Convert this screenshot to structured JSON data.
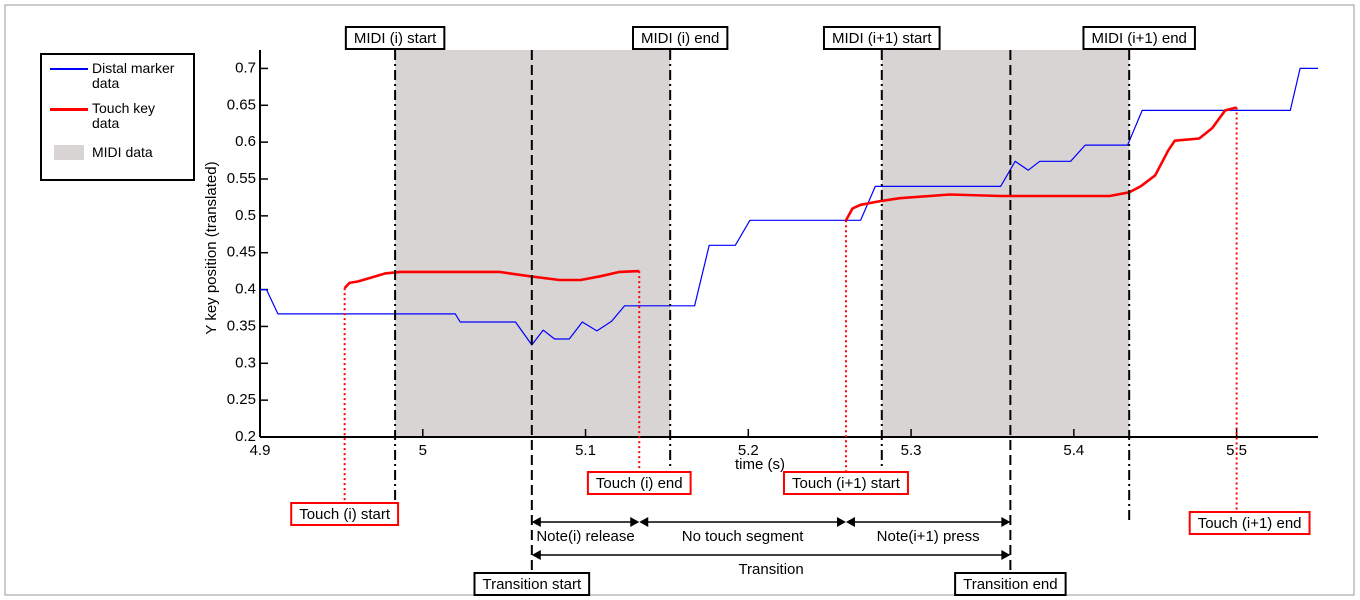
{
  "chart_data": {
    "type": "line",
    "xlabel": "time (s)",
    "ylabel": "Y key position (translated)",
    "xlim": [
      4.9,
      5.55
    ],
    "ylim": [
      0.2,
      0.725
    ],
    "xticks": [
      4.9,
      5,
      5.1,
      5.2,
      5.3,
      5.4,
      5.5
    ],
    "yticks": [
      0.2,
      0.25,
      0.3,
      0.35,
      0.4,
      0.45,
      0.5,
      0.55,
      0.6,
      0.65,
      0.7
    ],
    "series": [
      {
        "name": "Distal marker data",
        "color": "#0000ff",
        "x": [
          4.9,
          4.904,
          4.911,
          5.02,
          5.023,
          5.057,
          5.067,
          5.074,
          5.081,
          5.09,
          5.098,
          5.107,
          5.116,
          5.124,
          5.167,
          5.176,
          5.192,
          5.201,
          5.269,
          5.278,
          5.355,
          5.364,
          5.372,
          5.379,
          5.398,
          5.407,
          5.433,
          5.442,
          5.533,
          5.539,
          5.55
        ],
        "values": [
          0.4,
          0.4,
          0.367,
          0.367,
          0.356,
          0.356,
          0.325,
          0.345,
          0.333,
          0.333,
          0.356,
          0.344,
          0.357,
          0.378,
          0.378,
          0.46,
          0.46,
          0.494,
          0.494,
          0.54,
          0.54,
          0.574,
          0.562,
          0.574,
          0.574,
          0.596,
          0.596,
          0.643,
          0.643,
          0.7,
          0.7
        ]
      },
      {
        "name": "Touch key data",
        "color": "#ff0000",
        "x": [
          4.952,
          4.955,
          4.96,
          4.968,
          4.977,
          4.986,
          5.017,
          5.047,
          5.066,
          5.084,
          5.097,
          5.109,
          5.121,
          5.133,
          null,
          5.26,
          5.264,
          5.269,
          5.281,
          5.293,
          5.324,
          5.355,
          5.385,
          5.422,
          5.434,
          5.441,
          5.45,
          5.458,
          5.462,
          5.477,
          5.485,
          5.493,
          5.5
        ],
        "values": [
          0.402,
          0.409,
          0.411,
          0.416,
          0.422,
          0.424,
          0.424,
          0.424,
          0.418,
          0.413,
          0.413,
          0.418,
          0.424,
          0.425,
          null,
          0.494,
          0.51,
          0.515,
          0.52,
          0.524,
          0.529,
          0.527,
          0.527,
          0.527,
          0.532,
          0.54,
          0.555,
          0.589,
          0.602,
          0.605,
          0.619,
          0.643,
          0.647
        ]
      },
      {
        "name": "MIDI data",
        "color": "#d9d4d4"
      }
    ],
    "midi_events": [
      {
        "label": "MIDI (i) start",
        "x": 4.983
      },
      {
        "label": "MIDI (i) end",
        "x": 5.152
      },
      {
        "label": "MIDI (i+1) start",
        "x": 5.282
      },
      {
        "label": "MIDI (i+1) end",
        "x": 5.434
      }
    ],
    "touch_events": [
      {
        "label": "Touch (i) start",
        "x": 4.952
      },
      {
        "label": "Touch (i) end",
        "x": 5.133
      },
      {
        "label": "Touch (i+1) start",
        "x": 5.26
      },
      {
        "label": "Touch (i+1) end",
        "x": 5.5
      }
    ],
    "transitions": [
      {
        "label": "Transition start",
        "x": 5.067
      },
      {
        "label": "Transition end",
        "x": 5.361
      }
    ],
    "segments": [
      "Note(i) release",
      "No touch segment",
      "Note(i+1) press"
    ],
    "transition_label": "Transition"
  }
}
